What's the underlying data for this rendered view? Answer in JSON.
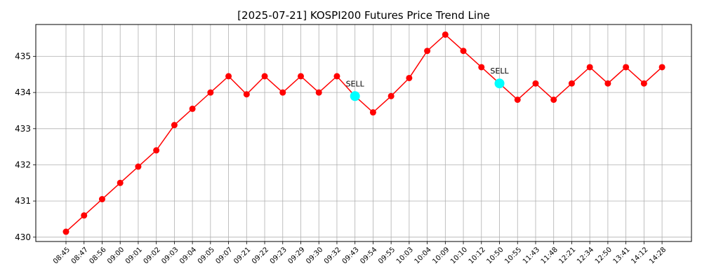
{
  "chart_data": {
    "type": "line",
    "title": "[2025-07-21] KOSPI200 Futures Price Trend Line",
    "xlabel": "",
    "ylabel": "",
    "grid": true,
    "x": [
      "08:45",
      "08:47",
      "08:56",
      "09:00",
      "09:01",
      "09:02",
      "09:03",
      "09:04",
      "09:05",
      "09:07",
      "09:21",
      "09:22",
      "09:23",
      "09:29",
      "09:30",
      "09:32",
      "09:43",
      "09:54",
      "09:55",
      "10:03",
      "10:04",
      "10:09",
      "10:10",
      "10:12",
      "10:50",
      "10:55",
      "11:43",
      "11:48",
      "12:21",
      "12:34",
      "12:50",
      "13:41",
      "14:12",
      "14:28"
    ],
    "series": [
      {
        "name": "",
        "color": "#ff0000",
        "values": [
          430.15,
          430.6,
          431.05,
          431.5,
          431.95,
          432.4,
          433.1,
          433.55,
          434.0,
          434.45,
          433.95,
          434.45,
          434.0,
          434.45,
          434.0,
          434.45,
          433.9,
          433.45,
          433.9,
          434.4,
          435.15,
          435.6,
          435.15,
          434.7,
          434.25,
          433.8,
          434.25,
          433.8,
          434.25,
          434.7,
          434.25,
          434.7,
          434.25,
          434.7
        ]
      }
    ],
    "yticks": [
      430,
      431,
      432,
      433,
      434,
      435
    ],
    "ylim": [
      429.88,
      435.88
    ],
    "annotations": [
      {
        "text": "SELL",
        "x": "09:43",
        "y": 433.9,
        "marker_color": "#00ffff"
      },
      {
        "text": "SELL",
        "x": "10:50",
        "y": 434.25,
        "marker_color": "#00ffff"
      }
    ]
  }
}
